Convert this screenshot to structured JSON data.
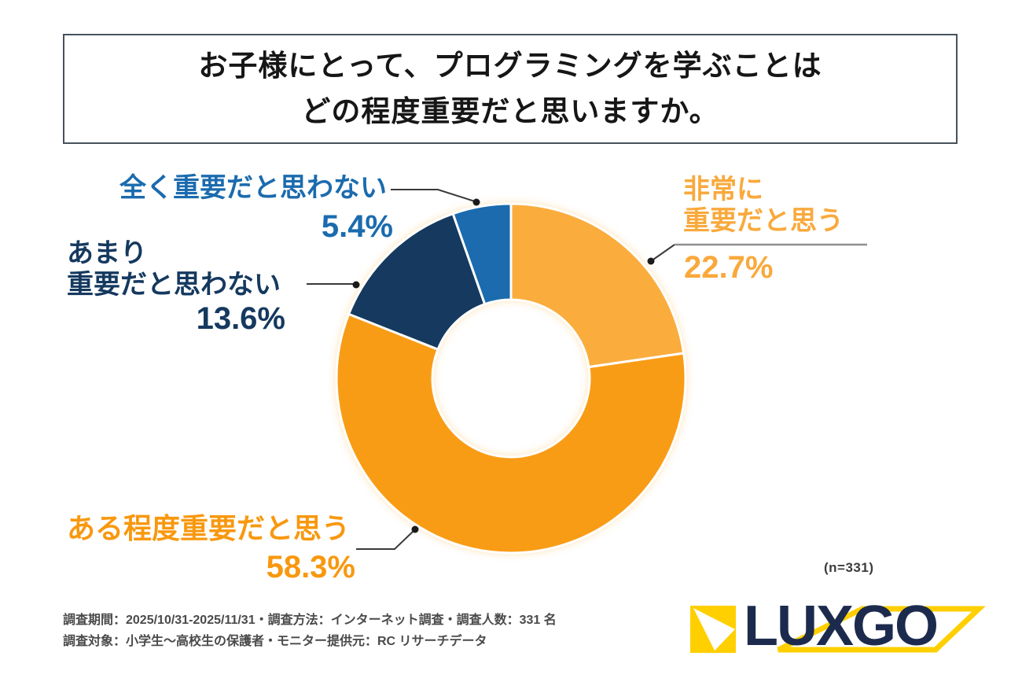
{
  "title": {
    "line1": "お子様にとって、プログラミングを学ぶことは",
    "line2": "どの程度重要だと思いますか。"
  },
  "chart_data": {
    "type": "pie",
    "subtype": "donut",
    "title": "お子様にとって、プログラミングを学ぶことはどの程度重要だと思いますか。",
    "unit": "%",
    "n": 331,
    "start_angle_deg": 0,
    "direction": "clockwise",
    "donut_hole_ratio": 0.45,
    "legend_position": "callouts",
    "segments": [
      {
        "label": "非常に重要だと思う",
        "value": 22.7,
        "color": "#FAAC3C"
      },
      {
        "label": "ある程度重要だと思う",
        "value": 58.3,
        "color": "#F99C15"
      },
      {
        "label": "あまり重要だと思わない",
        "value": 13.6,
        "color": "#15395F"
      },
      {
        "label": "全く重要だと思わない",
        "value": 5.4,
        "color": "#1B6BAE"
      }
    ]
  },
  "callouts": {
    "very": {
      "name_line1": "非常に",
      "name_line2": "重要だと思う",
      "pct": "22.7%",
      "color": "#F9A93C"
    },
    "somewhat": {
      "name_line1": "ある程度重要だと思う",
      "pct": "58.3%",
      "color": "#F8980F"
    },
    "not_really": {
      "name_line1": "あまり",
      "name_line2": "重要だと思わない",
      "pct": "13.6%",
      "color": "#15395F"
    },
    "not_at_all": {
      "name_line1": "全く重要だと思わない",
      "pct": "5.4%",
      "color": "#1B6BAE"
    }
  },
  "n_label": "(n=331)",
  "footer": {
    "line1": "調査期間：2025/10/31-2025/11/31・調査方法：インターネット調査・調査人数：331 名",
    "line2": "調査対象：小学生〜高校生の保護者・モニター提供元：RC リサーチデータ"
  },
  "logo": {
    "lux": "LUX",
    "go": "GO",
    "navy": "#1C2B4D",
    "yellow": "#FFCF00"
  }
}
